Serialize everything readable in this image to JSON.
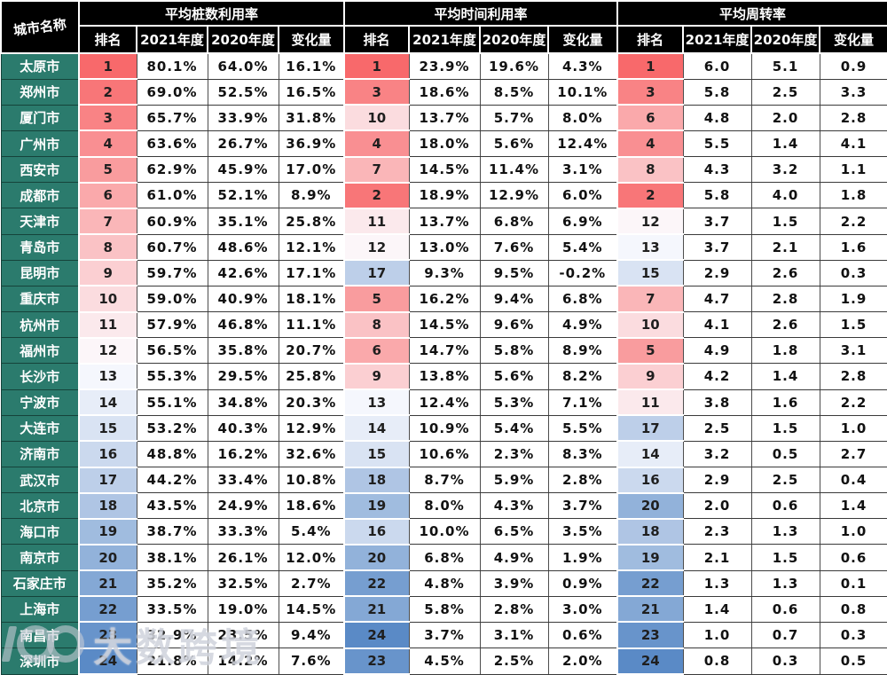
{
  "watermark": {
    "text": "大数跨境"
  },
  "chart_data": {
    "type": "table",
    "city_header": "城市名称",
    "groups": [
      {
        "title": "平均桩数利用率",
        "columns": [
          "排名",
          "2021年度",
          "2020年度",
          "变化量"
        ]
      },
      {
        "title": "平均时间利用率",
        "columns": [
          "排名",
          "2021年度",
          "2020年度",
          "变化量"
        ]
      },
      {
        "title": "平均周转率",
        "columns": [
          "排名",
          "2021年度",
          "2020年度",
          "变化量"
        ]
      }
    ],
    "colors": {
      "header_bg": "#000000",
      "city_bg": "#2B7B6D",
      "scale_min": "#F8696B",
      "scale_mid": "#FCFCFF",
      "scale_max": "#5A8AC6",
      "rank_count": 24
    },
    "rows": [
      {
        "city": "太原市",
        "cells": [
          [
            1,
            "80.1%",
            "64.0%",
            "16.1%"
          ],
          [
            1,
            "23.9%",
            "19.6%",
            "4.3%"
          ],
          [
            1,
            "6.0",
            "5.1",
            "0.9"
          ]
        ]
      },
      {
        "city": "郑州市",
        "cells": [
          [
            2,
            "69.0%",
            "52.5%",
            "16.5%"
          ],
          [
            3,
            "18.6%",
            "8.5%",
            "10.1%"
          ],
          [
            3,
            "5.8",
            "2.5",
            "3.3"
          ]
        ]
      },
      {
        "city": "厦门市",
        "cells": [
          [
            3,
            "65.7%",
            "33.9%",
            "31.8%"
          ],
          [
            10,
            "13.7%",
            "5.7%",
            "8.0%"
          ],
          [
            6,
            "4.8",
            "2.0",
            "2.8"
          ]
        ]
      },
      {
        "city": "广州市",
        "cells": [
          [
            4,
            "63.6%",
            "26.7%",
            "36.9%"
          ],
          [
            4,
            "18.0%",
            "5.6%",
            "12.4%"
          ],
          [
            4,
            "5.5",
            "1.4",
            "4.1"
          ]
        ]
      },
      {
        "city": "西安市",
        "cells": [
          [
            5,
            "62.9%",
            "45.9%",
            "17.0%"
          ],
          [
            7,
            "14.5%",
            "11.4%",
            "3.1%"
          ],
          [
            8,
            "4.3",
            "3.2",
            "1.1"
          ]
        ]
      },
      {
        "city": "成都市",
        "cells": [
          [
            6,
            "61.0%",
            "52.1%",
            "8.9%"
          ],
          [
            2,
            "18.9%",
            "12.9%",
            "6.0%"
          ],
          [
            2,
            "5.8",
            "4.0",
            "1.8"
          ]
        ]
      },
      {
        "city": "天津市",
        "cells": [
          [
            7,
            "60.9%",
            "35.1%",
            "25.8%"
          ],
          [
            11,
            "13.7%",
            "6.8%",
            "6.9%"
          ],
          [
            12,
            "3.7",
            "1.5",
            "2.2"
          ]
        ]
      },
      {
        "city": "青岛市",
        "cells": [
          [
            8,
            "60.7%",
            "48.6%",
            "12.1%"
          ],
          [
            12,
            "13.0%",
            "7.6%",
            "5.4%"
          ],
          [
            13,
            "3.7",
            "2.1",
            "1.6"
          ]
        ]
      },
      {
        "city": "昆明市",
        "cells": [
          [
            9,
            "59.7%",
            "42.6%",
            "17.1%"
          ],
          [
            17,
            "9.3%",
            "9.5%",
            "-0.2%"
          ],
          [
            15,
            "2.9",
            "2.6",
            "0.3"
          ]
        ]
      },
      {
        "city": "重庆市",
        "cells": [
          [
            10,
            "59.0%",
            "40.9%",
            "18.1%"
          ],
          [
            5,
            "16.2%",
            "9.4%",
            "6.8%"
          ],
          [
            7,
            "4.7",
            "2.8",
            "1.9"
          ]
        ]
      },
      {
        "city": "杭州市",
        "cells": [
          [
            11,
            "57.9%",
            "46.8%",
            "11.1%"
          ],
          [
            8,
            "14.5%",
            "9.6%",
            "4.9%"
          ],
          [
            10,
            "4.1",
            "2.6",
            "1.5"
          ]
        ]
      },
      {
        "city": "福州市",
        "cells": [
          [
            12,
            "56.5%",
            "35.8%",
            "20.7%"
          ],
          [
            6,
            "14.7%",
            "5.8%",
            "8.9%"
          ],
          [
            5,
            "4.9",
            "1.8",
            "3.1"
          ]
        ]
      },
      {
        "city": "长沙市",
        "cells": [
          [
            13,
            "55.3%",
            "29.5%",
            "25.8%"
          ],
          [
            9,
            "13.8%",
            "5.6%",
            "8.2%"
          ],
          [
            9,
            "4.2",
            "1.4",
            "2.8"
          ]
        ]
      },
      {
        "city": "宁波市",
        "cells": [
          [
            14,
            "55.1%",
            "34.8%",
            "20.3%"
          ],
          [
            13,
            "12.4%",
            "5.3%",
            "7.1%"
          ],
          [
            11,
            "3.8",
            "1.6",
            "2.2"
          ]
        ]
      },
      {
        "city": "大连市",
        "cells": [
          [
            15,
            "53.2%",
            "40.3%",
            "12.9%"
          ],
          [
            14,
            "10.9%",
            "5.4%",
            "5.5%"
          ],
          [
            17,
            "2.5",
            "1.5",
            "1.0"
          ]
        ]
      },
      {
        "city": "济南市",
        "cells": [
          [
            16,
            "48.8%",
            "16.2%",
            "32.6%"
          ],
          [
            15,
            "10.6%",
            "2.3%",
            "8.3%"
          ],
          [
            14,
            "3.2",
            "0.5",
            "2.7"
          ]
        ]
      },
      {
        "city": "武汉市",
        "cells": [
          [
            17,
            "44.2%",
            "33.4%",
            "10.8%"
          ],
          [
            18,
            "8.7%",
            "5.9%",
            "2.8%"
          ],
          [
            16,
            "2.9",
            "2.5",
            "0.4"
          ]
        ]
      },
      {
        "city": "北京市",
        "cells": [
          [
            18,
            "43.5%",
            "24.9%",
            "18.6%"
          ],
          [
            19,
            "8.0%",
            "4.3%",
            "3.7%"
          ],
          [
            20,
            "2.0",
            "0.6",
            "1.4"
          ]
        ]
      },
      {
        "city": "海口市",
        "cells": [
          [
            19,
            "38.7%",
            "33.3%",
            "5.4%"
          ],
          [
            16,
            "10.0%",
            "6.5%",
            "3.5%"
          ],
          [
            18,
            "2.3",
            "1.3",
            "1.0"
          ]
        ]
      },
      {
        "city": "南京市",
        "cells": [
          [
            20,
            "38.1%",
            "26.1%",
            "12.0%"
          ],
          [
            20,
            "6.8%",
            "4.9%",
            "1.9%"
          ],
          [
            19,
            "2.1",
            "1.5",
            "0.6"
          ]
        ]
      },
      {
        "city": "石家庄市",
        "cells": [
          [
            21,
            "35.2%",
            "32.5%",
            "2.7%"
          ],
          [
            22,
            "4.8%",
            "3.9%",
            "0.9%"
          ],
          [
            22,
            "1.3",
            "1.3",
            "0.1"
          ]
        ]
      },
      {
        "city": "上海市",
        "cells": [
          [
            22,
            "33.5%",
            "19.0%",
            "14.5%"
          ],
          [
            21,
            "5.8%",
            "2.8%",
            "3.0%"
          ],
          [
            21,
            "1.4",
            "0.6",
            "0.8"
          ]
        ]
      },
      {
        "city": "南昌市",
        "cells": [
          [
            23,
            "32.9%",
            "23.5%",
            "9.4%"
          ],
          [
            24,
            "3.7%",
            "3.1%",
            "0.6%"
          ],
          [
            23,
            "1.0",
            "0.7",
            "0.3"
          ]
        ]
      },
      {
        "city": "深圳市",
        "cells": [
          [
            24,
            "21.8%",
            "14.2%",
            "7.6%"
          ],
          [
            23,
            "4.5%",
            "2.5%",
            "2.0%"
          ],
          [
            24,
            "0.8",
            "0.3",
            "0.5"
          ]
        ]
      }
    ]
  }
}
